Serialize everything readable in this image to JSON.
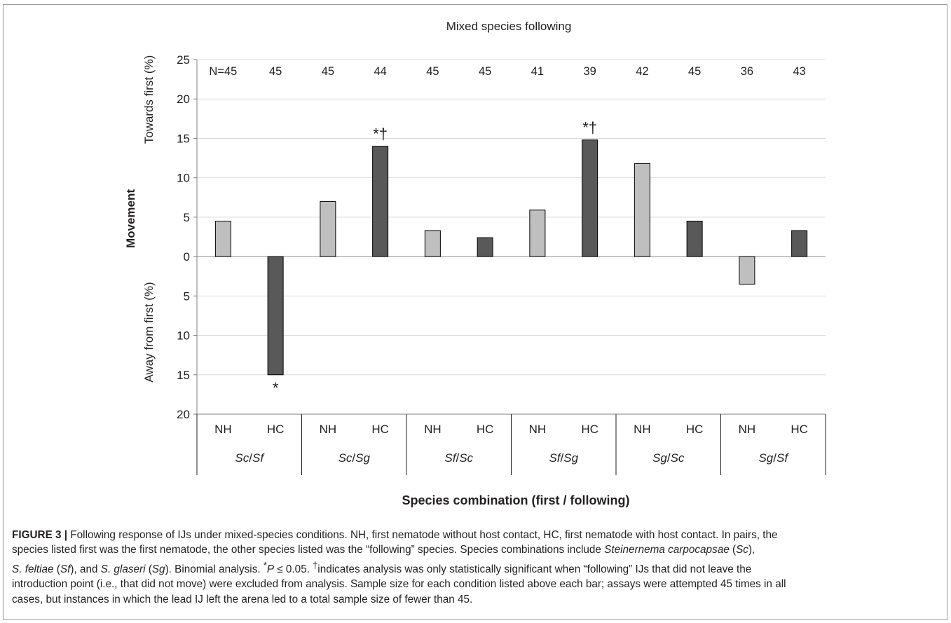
{
  "chart_data": {
    "type": "bar",
    "title": "Mixed species following",
    "ylabel": "Movement",
    "ylabel_top": "Towards first (%)",
    "ylabel_bottom": "Away from first (%)",
    "xlabel": "Species combination (first / following)",
    "ylim": [
      -20,
      25
    ],
    "yticks": [
      25,
      20,
      15,
      10,
      5,
      0,
      -5,
      -10,
      -15,
      -20
    ],
    "ytick_labels": [
      "25",
      "20",
      "15",
      "10",
      "5",
      "0",
      "5",
      "10",
      "15",
      "20"
    ],
    "grid": true,
    "condition_labels": [
      "NH",
      "HC",
      "NH",
      "HC",
      "NH",
      "HC",
      "NH",
      "HC",
      "NH",
      "HC",
      "NH",
      "HC"
    ],
    "groups": [
      "Sc/Sf",
      "Sc/Sg",
      "Sf/Sc",
      "Sf/Sg",
      "Sg/Sc",
      "Sg/Sf"
    ],
    "groups_first": [
      "Sc",
      "Sc",
      "Sf",
      "Sf",
      "Sg",
      "Sg"
    ],
    "groups_second": [
      "Sf",
      "Sg",
      "Sc",
      "Sg",
      "Sc",
      "Sf"
    ],
    "values": [
      4.5,
      -15.0,
      7.0,
      14.0,
      3.3,
      2.4,
      5.9,
      14.8,
      11.8,
      4.5,
      -3.5,
      3.3
    ],
    "sample_sizes": [
      "N=45",
      "45",
      "45",
      "44",
      "45",
      "45",
      "41",
      "39",
      "42",
      "45",
      "36",
      "43"
    ],
    "significance": [
      "",
      "*",
      "",
      "*†",
      "",
      "",
      "",
      "*†",
      "",
      "",
      "",
      ""
    ],
    "colors": {
      "NH": "#bfbfbf",
      "HC": "#595959",
      "grid": "#d9d9d9",
      "axis": "#7f7f7f"
    }
  },
  "caption": {
    "label": "FIGURE 3 |",
    "line1": "Following response of IJs under mixed-species conditions. NH, first nematode without host contact, HC, first nematode with host contact. In pairs, the",
    "line2": "species listed first was the first nematode, the other species listed was the “following” species. Species combinations include",
    "line2_sp1": "Steinernema carpocapsae",
    "line2_ab1": "Sc",
    "line3_sp2": "S. feltiae",
    "line3_ab2": "Sf",
    "line3_sp3": "S. glaseri",
    "line3_ab3": "Sg",
    "line3_end": "Binomial analysis.",
    "line3_p": "P",
    "line3_stat": "≤ 0.05.",
    "line3_tail": "indicates analysis was only statistically significant when “following” IJs that did not leave the",
    "line4": "introduction point (i.e., that did not move) were excluded from analysis. Sample size for each condition listed above each bar; assays were attempted 45 times in all",
    "line5": "cases, but instances in which the lead IJ left the arena led to a total sample size of fewer than 45."
  }
}
